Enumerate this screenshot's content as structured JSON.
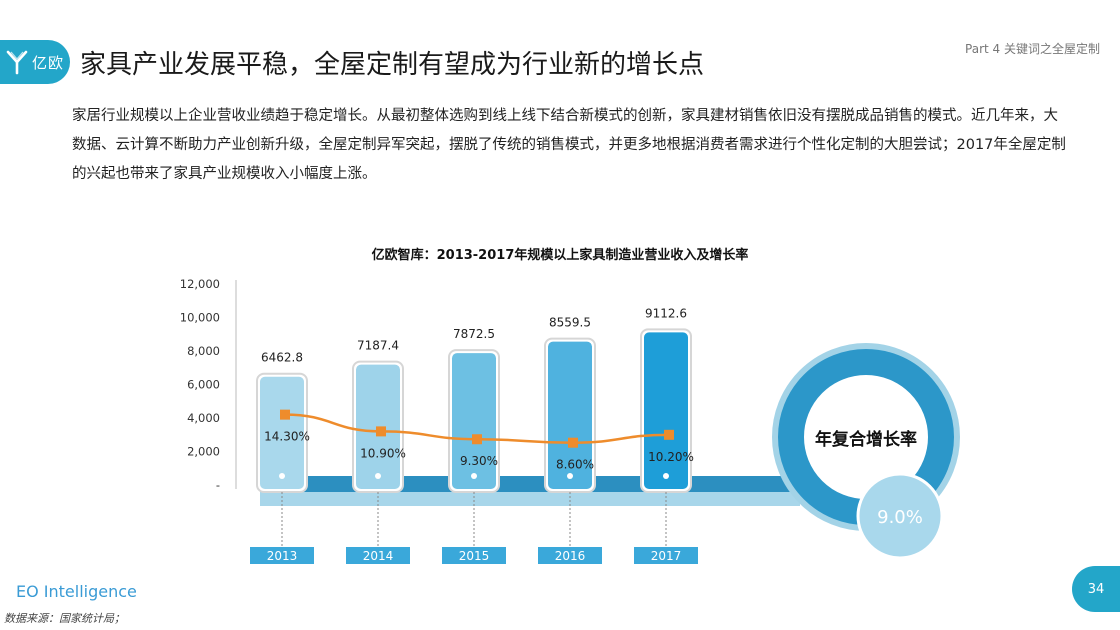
{
  "header": {
    "logo_text": "亿欧",
    "title": "家具产业发展平稳，全屋定制有望成为行业新的增长点",
    "section": "Part 4 关键词之全屋定制"
  },
  "intro": "家居行业规模以上企业营收业绩趋于稳定增长。从最初整体选购到线上线下结合新模式的创新，家具建材销售依旧没有摆脱成品销售的模式。近几年来，大数据、云计算不断助力产业创新升级，全屋定制异军突起，摆脱了传统的销售模式，并更多地根据消费者需求进行个性化定制的大胆尝试；2017年全屋定制的兴起也带来了家具产业规模收入小幅度上涨。",
  "footer": {
    "brand": "EO Intelligence",
    "source": "数据来源：国家统计局；",
    "page": "34"
  },
  "colors": {
    "accent": "#23a6c9",
    "line": "#ee8c2c",
    "bars": [
      "#a9d8ec",
      "#9ed3ea",
      "#6dc0e3",
      "#4fb2df",
      "#1e9ed8"
    ],
    "ring": "#2c97c9"
  },
  "chart_data": {
    "type": "bar",
    "title": "亿欧智库：2013-2017年规模以上家具制造业营业收入及增长率",
    "categories": [
      "2013",
      "2014",
      "2015",
      "2016",
      "2017"
    ],
    "series": [
      {
        "values": [
          6462.8,
          7187.4,
          7872.5,
          8559.5,
          9112.6
        ],
        "value_labels": [
          "6462.8",
          "7187.4",
          "7872.5",
          "8559.5",
          "9112.6"
        ]
      },
      {
        "values": [
          14.3,
          10.9,
          9.3,
          8.6,
          10.2
        ],
        "value_labels": [
          "14.30%",
          "10.90%",
          "9.30%",
          "8.60%",
          "10.20%"
        ],
        "type": "line"
      }
    ],
    "yticks": [
      "12,000",
      "10,000",
      "8,000",
      "6,000",
      "4,000",
      "2,000",
      "-"
    ],
    "ylim": [
      0,
      12000
    ],
    "cagr_label": "年复合增长率",
    "cagr_value": "9.0%"
  }
}
